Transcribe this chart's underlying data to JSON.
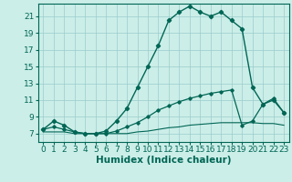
{
  "title": "",
  "xlabel": "Humidex (Indice chaleur)",
  "background_color": "#cceee8",
  "grid_color": "#99cccc",
  "line_color": "#006655",
  "xlim": [
    -0.5,
    23.5
  ],
  "ylim": [
    6.0,
    22.5
  ],
  "yticks": [
    7,
    9,
    11,
    13,
    15,
    17,
    19,
    21
  ],
  "xticks": [
    0,
    1,
    2,
    3,
    4,
    5,
    6,
    7,
    8,
    9,
    10,
    11,
    12,
    13,
    14,
    15,
    16,
    17,
    18,
    19,
    20,
    21,
    22,
    23
  ],
  "hours": [
    0,
    1,
    2,
    3,
    4,
    5,
    6,
    7,
    8,
    9,
    10,
    11,
    12,
    13,
    14,
    15,
    16,
    17,
    18,
    19,
    20,
    21,
    22,
    23
  ],
  "line_main": [
    7.5,
    8.5,
    8.0,
    7.2,
    7.0,
    7.0,
    7.3,
    8.5,
    10.0,
    12.5,
    15.0,
    17.5,
    20.5,
    21.5,
    22.2,
    21.5,
    21.0,
    21.5,
    20.5,
    19.5,
    12.5,
    10.5,
    11.0,
    9.5
  ],
  "line_mid": [
    7.5,
    7.8,
    7.5,
    7.2,
    7.0,
    7.0,
    7.0,
    7.3,
    7.8,
    8.3,
    9.0,
    9.8,
    10.3,
    10.8,
    11.2,
    11.5,
    11.8,
    12.0,
    12.2,
    8.0,
    8.5,
    10.5,
    11.2,
    9.5
  ],
  "line_flat": [
    7.2,
    7.2,
    7.2,
    7.0,
    7.0,
    7.0,
    7.0,
    7.0,
    7.0,
    7.2,
    7.3,
    7.5,
    7.7,
    7.8,
    8.0,
    8.1,
    8.2,
    8.3,
    8.3,
    8.3,
    8.3,
    8.2,
    8.2,
    8.0
  ],
  "tick_fontsize": 6.5,
  "label_fontsize": 7.5
}
